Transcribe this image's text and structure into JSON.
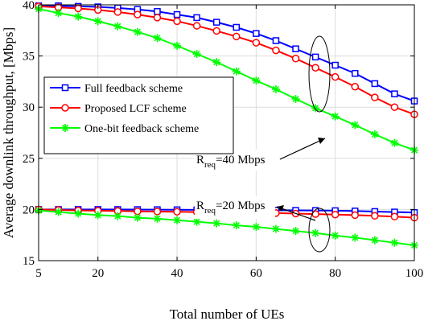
{
  "chart_data": {
    "type": "line",
    "title": "",
    "xlabel": "Total number of UEs",
    "ylabel": "Average downlink throughput, [Mbps]",
    "xlim": [
      5,
      100
    ],
    "ylim": [
      15,
      40
    ],
    "xticks": [
      5,
      20,
      40,
      60,
      80,
      100
    ],
    "yticks": [
      15,
      20,
      25,
      30,
      35,
      40
    ],
    "grid": true,
    "legend_position": "upper-left",
    "x": [
      5,
      10,
      15,
      20,
      25,
      30,
      35,
      40,
      45,
      50,
      55,
      60,
      65,
      70,
      75,
      80,
      85,
      90,
      95,
      100
    ],
    "series": [
      {
        "name": "Full feedback scheme",
        "group": "R_req=40 Mbps",
        "color": "#0000ff",
        "marker": "square",
        "values": [
          39.9,
          39.9,
          39.85,
          39.8,
          39.7,
          39.55,
          39.35,
          39.05,
          38.75,
          38.3,
          37.8,
          37.2,
          36.5,
          35.7,
          34.9,
          34.1,
          33.3,
          32.3,
          31.3,
          30.6
        ]
      },
      {
        "name": "Proposed LCF scheme",
        "group": "R_req=40 Mbps",
        "color": "#ff0000",
        "marker": "circle",
        "values": [
          39.85,
          39.75,
          39.65,
          39.5,
          39.3,
          39.05,
          38.75,
          38.4,
          37.95,
          37.45,
          36.9,
          36.3,
          35.55,
          34.75,
          33.85,
          32.95,
          32.0,
          30.95,
          30.0,
          29.3
        ]
      },
      {
        "name": "One-bit feedback scheme",
        "group": "R_req=40 Mbps",
        "color": "#00ff00",
        "marker": "asterisk",
        "values": [
          39.6,
          39.2,
          38.85,
          38.4,
          37.9,
          37.35,
          36.75,
          36.0,
          35.2,
          34.4,
          33.5,
          32.6,
          31.75,
          30.8,
          29.9,
          29.1,
          28.25,
          27.35,
          26.5,
          25.8
        ]
      },
      {
        "name": "Full feedback scheme",
        "group": "R_req=20 Mbps",
        "color": "#0000ff",
        "marker": "square",
        "values": [
          20.0,
          20.0,
          20.0,
          20.0,
          20.0,
          19.99,
          19.98,
          19.97,
          19.96,
          19.95,
          19.94,
          19.93,
          19.92,
          19.91,
          19.9,
          19.88,
          19.85,
          19.8,
          19.75,
          19.7
        ]
      },
      {
        "name": "Proposed LCF scheme",
        "group": "R_req=20 Mbps",
        "color": "#ff0000",
        "marker": "circle",
        "values": [
          20.0,
          19.95,
          19.9,
          19.88,
          19.85,
          19.82,
          19.8,
          19.78,
          19.75,
          19.72,
          19.7,
          19.68,
          19.65,
          19.6,
          19.55,
          19.5,
          19.45,
          19.38,
          19.3,
          19.2
        ]
      },
      {
        "name": "One-bit feedback scheme",
        "group": "R_req=20 Mbps",
        "color": "#00ff00",
        "marker": "asterisk",
        "values": [
          19.9,
          19.75,
          19.6,
          19.45,
          19.35,
          19.2,
          19.1,
          18.95,
          18.8,
          18.65,
          18.45,
          18.3,
          18.1,
          17.9,
          17.7,
          17.45,
          17.25,
          17.0,
          16.75,
          16.5
        ]
      }
    ],
    "legend": [
      "Full feedback scheme",
      "Proposed LCF scheme",
      "One-bit feedback scheme"
    ],
    "annotations": [
      {
        "base": "R",
        "sub": "req",
        "suffix": "=40 Mbps"
      },
      {
        "base": "R",
        "sub": "req",
        "suffix": "=20 Mbps"
      }
    ]
  }
}
